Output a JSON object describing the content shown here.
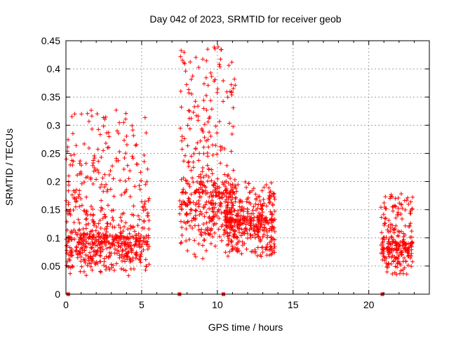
{
  "chart_data": {
    "type": "scatter",
    "title": "Day 042 of 2023, SRMTID for receiver geob",
    "xlabel": "GPS time / hours",
    "ylabel": "SRMTID / TECUs",
    "xlim": [
      0,
      24
    ],
    "ylim": [
      0,
      0.45
    ],
    "x_ticks": [
      0,
      5,
      10,
      15,
      20
    ],
    "x_tick_labels": [
      "0",
      "5",
      "10",
      "15",
      "20"
    ],
    "y_ticks": [
      0,
      0.05,
      0.1,
      0.15,
      0.2,
      0.25,
      0.3,
      0.35,
      0.4,
      0.45
    ],
    "y_tick_labels": [
      "0",
      "0.05",
      "0.1",
      "0.15",
      "0.2",
      "0.25",
      "0.3",
      "0.35",
      "0.4",
      "0.45"
    ],
    "grid": true,
    "marker": "+",
    "color": "#ff0000",
    "clusters": [
      {
        "x_start": 0.0,
        "x_end": 5.5,
        "y_low": 0.03,
        "y_median": 0.1,
        "y_high": 0.33
      },
      {
        "x_start": 7.5,
        "x_end": 11.2,
        "y_low": 0.05,
        "y_median": 0.18,
        "y_high": 0.44
      },
      {
        "x_start": 10.5,
        "x_end": 13.8,
        "y_low": 0.06,
        "y_median": 0.13,
        "y_high": 0.2
      },
      {
        "x_start": 20.8,
        "x_end": 22.9,
        "y_low": 0.03,
        "y_median": 0.09,
        "y_high": 0.18
      }
    ],
    "zero_value_marks_x": [
      0.15,
      7.5,
      10.4,
      20.9
    ]
  }
}
